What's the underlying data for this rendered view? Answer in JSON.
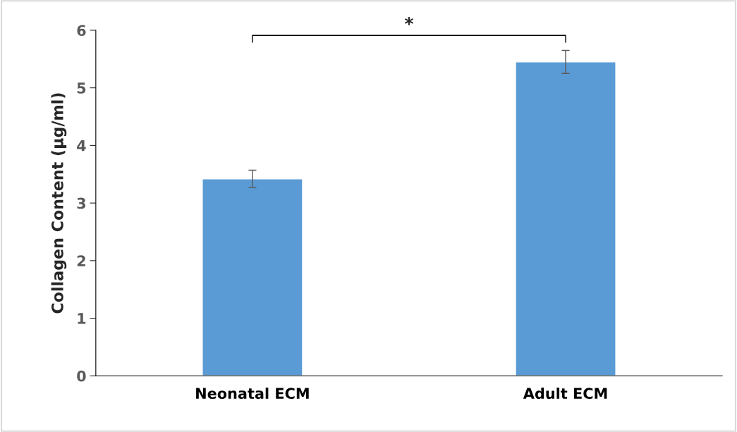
{
  "chart_data": {
    "type": "bar",
    "ylabel": "Collagen Content (µg/ml)",
    "categories": [
      "Neonatal ECM",
      "Adult ECM"
    ],
    "values": [
      3.42,
      5.45
    ],
    "errors": [
      0.15,
      0.2
    ],
    "color": "#5b9bd5",
    "ylim": [
      0,
      6
    ],
    "yticks": [
      0,
      1,
      2,
      3,
      4,
      5,
      6
    ],
    "grid": false,
    "legend": false,
    "annotations": [
      "*"
    ]
  }
}
